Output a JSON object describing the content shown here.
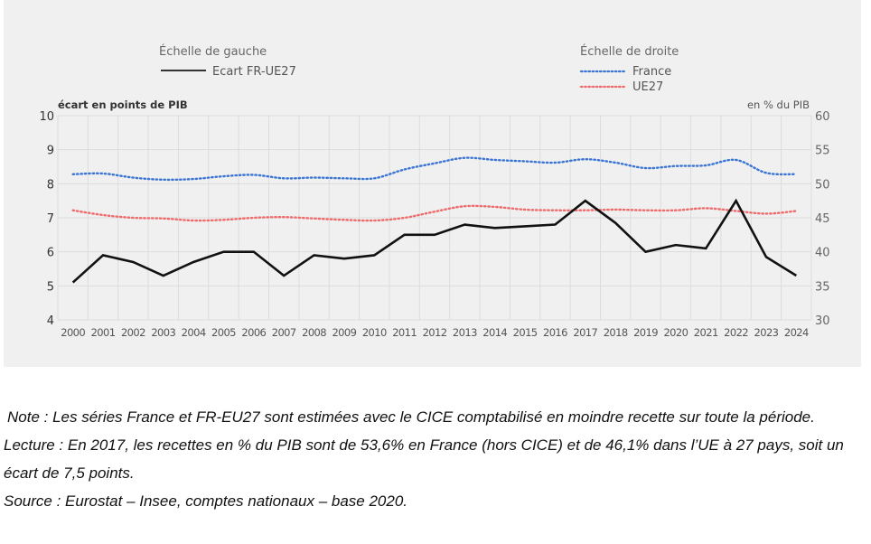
{
  "chart_data": {
    "type": "line",
    "title": "",
    "legend": {
      "left_group_title": "Échelle de gauche",
      "right_group_title": "Échelle de droite",
      "placement": "top-center"
    },
    "left_axis": {
      "label": "écart en points de PIB",
      "ylim": [
        4,
        10
      ],
      "ticks": [
        4,
        5,
        6,
        7,
        8,
        9,
        10
      ]
    },
    "right_axis": {
      "label": "en % du PIB",
      "ylim": [
        30,
        60
      ],
      "ticks": [
        30,
        35,
        40,
        45,
        50,
        55,
        60
      ]
    },
    "grid": true,
    "x": [
      2000,
      2001,
      2002,
      2003,
      2004,
      2005,
      2006,
      2007,
      2008,
      2009,
      2010,
      2011,
      2012,
      2013,
      2014,
      2015,
      2016,
      2017,
      2018,
      2019,
      2020,
      2021,
      2022,
      2023,
      2024
    ],
    "series": [
      {
        "name": "Ecart FR-UE27",
        "axis": "left",
        "style": "solid",
        "color": "#111111",
        "values": [
          5.1,
          5.9,
          5.7,
          5.3,
          5.7,
          6.0,
          6.0,
          5.3,
          5.9,
          5.8,
          5.9,
          6.5,
          6.5,
          6.8,
          6.7,
          6.75,
          6.8,
          7.5,
          6.85,
          6.0,
          6.2,
          6.1,
          7.5,
          5.85,
          5.3
        ]
      },
      {
        "name": "France",
        "axis": "right",
        "style": "dotted",
        "color": "#3a75d6",
        "values": [
          51.4,
          51.5,
          50.9,
          50.6,
          50.7,
          51.1,
          51.3,
          50.8,
          50.9,
          50.8,
          50.8,
          52.1,
          53.0,
          53.8,
          53.5,
          53.3,
          53.1,
          53.6,
          53.1,
          52.3,
          52.6,
          52.7,
          53.5,
          51.6,
          51.4
        ]
      },
      {
        "name": "UE27",
        "axis": "right",
        "style": "dotted",
        "color": "#f06a6a",
        "values": [
          46.1,
          45.4,
          45.0,
          44.9,
          44.6,
          44.7,
          45.0,
          45.1,
          44.9,
          44.7,
          44.6,
          45.0,
          45.9,
          46.7,
          46.6,
          46.2,
          46.1,
          46.1,
          46.2,
          46.1,
          46.1,
          46.4,
          46.0,
          45.6,
          46.0
        ]
      }
    ]
  },
  "notes": {
    "note": "Note : Les séries France et FR-EU27 sont estimées avec le CICE comptabilisé en moindre recette sur toute la période.",
    "lecture": "Lecture : En 2017, les recettes en % du PIB sont de 53,6% en France (hors CICE) et de 46,1% dans l’UE à 27 pays, soit un écart de 7,5 points.",
    "source": "Source : Eurostat – Insee, comptes nationaux – base 2020."
  }
}
